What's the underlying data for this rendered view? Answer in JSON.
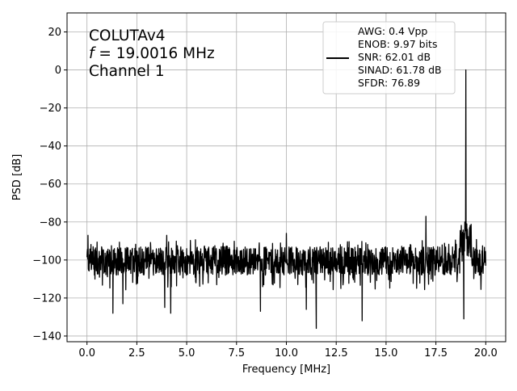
{
  "chart_data": {
    "type": "line",
    "title": "",
    "xlabel": "Frequency [MHz]",
    "ylabel": "PSD [dB]",
    "xlim": [
      -1.0,
      21.0
    ],
    "ylim": [
      -143,
      30
    ],
    "xticks": [
      0.0,
      2.5,
      5.0,
      7.5,
      10.0,
      12.5,
      15.0,
      17.5,
      20.0
    ],
    "xtick_labels": [
      "0.0",
      "2.5",
      "5.0",
      "7.5",
      "10.0",
      "12.5",
      "15.0",
      "17.5",
      "20.0"
    ],
    "yticks": [
      20,
      0,
      -20,
      -40,
      -60,
      -80,
      -100,
      -120,
      -140
    ],
    "ytick_labels": [
      "20",
      "0",
      "−20",
      "−40",
      "−60",
      "−80",
      "−100",
      "−120",
      "−140"
    ],
    "grid": true,
    "legend_position": "upper-right",
    "annotation": {
      "line1": "COLUTAv4",
      "line2_italic": "f",
      "line2_rest": " = 19.0016 MHz",
      "line3": "Channel 1"
    },
    "legend": {
      "lines": [
        "AWG: 0.4 Vpp",
        "ENOB: 9.97 bits",
        "SNR: 62.01 dB",
        "SINAD: 61.78 dB",
        "SFDR: 76.89"
      ]
    },
    "series": [
      {
        "color": "#000000",
        "noise_floor_db": -101,
        "noise_band_db": [
          -108,
          -93
        ],
        "freq_range_mhz": [
          0.0,
          20.0
        ],
        "peaks": [
          {
            "x": 19.0016,
            "y": 0
          },
          {
            "x": 17.0,
            "y": -77
          },
          {
            "x": 10.0,
            "y": -86
          },
          {
            "x": 4.0,
            "y": -87
          },
          {
            "x": 0.05,
            "y": -87
          },
          {
            "x": 18.95,
            "y": -80
          },
          {
            "x": 19.05,
            "y": -81
          }
        ],
        "dips": [
          {
            "x": 11.5,
            "y": -136
          },
          {
            "x": 13.8,
            "y": -132
          },
          {
            "x": 1.3,
            "y": -128
          },
          {
            "x": 4.2,
            "y": -128
          },
          {
            "x": 18.9,
            "y": -131
          },
          {
            "x": 8.7,
            "y": -127
          },
          {
            "x": 11.0,
            "y": -126
          },
          {
            "x": 3.9,
            "y": -125
          },
          {
            "x": 1.8,
            "y": -123
          }
        ]
      }
    ]
  }
}
